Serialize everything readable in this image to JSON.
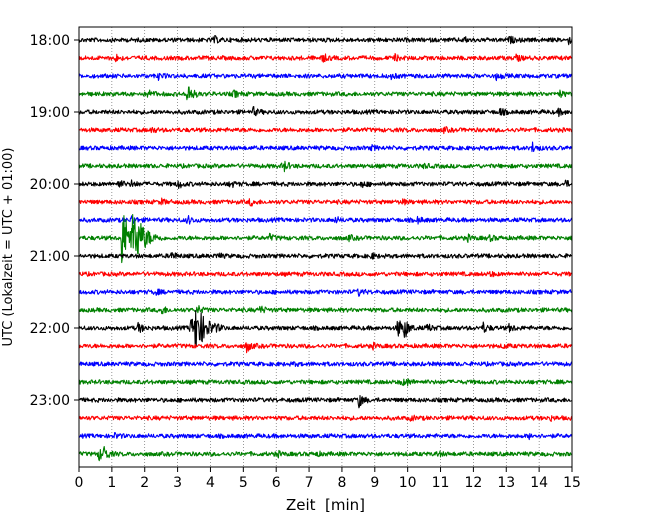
{
  "chart_data": {
    "type": "line",
    "title": "",
    "xlabel": "Zeit  [min]",
    "ylabel": "UTC (Lokalzeit = UTC + 01:00)",
    "xlim": [
      0,
      15
    ],
    "x_ticks": [
      "0",
      "1",
      "2",
      "3",
      "4",
      "5",
      "6",
      "7",
      "8",
      "9",
      "10",
      "11",
      "12",
      "13",
      "14",
      "15"
    ],
    "y_tick_labels": [
      "18:00",
      "19:00",
      "20:00",
      "21:00",
      "22:00",
      "23:00"
    ],
    "trace_interval_minutes": 15,
    "trace_count": 24,
    "start_time": "18:00",
    "color_cycle": [
      "#000000",
      "#ff0000",
      "#0000ff",
      "#008000"
    ],
    "grid": "vertical dotted lines at each minute",
    "traces": [
      {
        "start": "18:00",
        "color": "#000000",
        "events": [
          {
            "t": 4.1,
            "amp": 0.35
          },
          {
            "t": 11.7,
            "amp": 0.25
          },
          {
            "t": 13.1,
            "amp": 0.3
          },
          {
            "t": 14.9,
            "amp": 0.3
          }
        ]
      },
      {
        "start": "18:15",
        "color": "#ff0000",
        "events": [
          {
            "t": 1.1,
            "amp": 0.35
          },
          {
            "t": 7.4,
            "amp": 0.45
          },
          {
            "t": 9.6,
            "amp": 0.3
          },
          {
            "t": 13.3,
            "amp": 0.3
          }
        ]
      },
      {
        "start": "18:30",
        "color": "#0000ff",
        "events": [
          {
            "t": 2.4,
            "amp": 0.3
          },
          {
            "t": 9.5,
            "amp": 0.25
          },
          {
            "t": 12.7,
            "amp": 0.3
          }
        ]
      },
      {
        "start": "18:45",
        "color": "#008000",
        "events": [
          {
            "t": 2.1,
            "amp": 0.4
          },
          {
            "t": 3.3,
            "amp": 1.4
          },
          {
            "t": 4.7,
            "amp": 0.35
          },
          {
            "t": 14.6,
            "amp": 0.35
          }
        ]
      },
      {
        "start": "19:00",
        "color": "#000000",
        "events": [
          {
            "t": 5.3,
            "amp": 0.4
          },
          {
            "t": 12.8,
            "amp": 0.35
          },
          {
            "t": 14.6,
            "amp": 0.3
          }
        ]
      },
      {
        "start": "19:15",
        "color": "#ff0000",
        "events": [
          {
            "t": 2.2,
            "amp": 0.25
          },
          {
            "t": 11.1,
            "amp": 0.2
          }
        ]
      },
      {
        "start": "19:30",
        "color": "#0000ff",
        "events": [
          {
            "t": 8.9,
            "amp": 0.2
          },
          {
            "t": 13.8,
            "amp": 0.5
          }
        ]
      },
      {
        "start": "19:45",
        "color": "#008000",
        "events": [
          {
            "t": 6.2,
            "amp": 0.7
          },
          {
            "t": 10.5,
            "amp": 0.2
          }
        ]
      },
      {
        "start": "20:00",
        "color": "#000000",
        "events": [
          {
            "t": 1.2,
            "amp": 0.4
          },
          {
            "t": 1.6,
            "amp": 0.3
          },
          {
            "t": 3.0,
            "amp": 0.45
          },
          {
            "t": 4.6,
            "amp": 0.35
          },
          {
            "t": 8.6,
            "amp": 0.3
          },
          {
            "t": 14.8,
            "amp": 0.3
          }
        ]
      },
      {
        "start": "20:15",
        "color": "#ff0000",
        "events": [
          {
            "t": 2.5,
            "amp": 0.25
          },
          {
            "t": 5.2,
            "amp": 0.35
          },
          {
            "t": 9.8,
            "amp": 0.25
          }
        ]
      },
      {
        "start": "20:30",
        "color": "#0000ff",
        "events": [
          {
            "t": 1.6,
            "amp": 0.45
          },
          {
            "t": 3.3,
            "amp": 0.45
          },
          {
            "t": 7.8,
            "amp": 0.25
          },
          {
            "t": 10.3,
            "amp": 0.3
          }
        ]
      },
      {
        "start": "20:45",
        "color": "#008000",
        "events": [
          {
            "t": 1.3,
            "amp": 3.0
          },
          {
            "t": 1.65,
            "amp": 2.3
          },
          {
            "t": 5.8,
            "amp": 0.3
          },
          {
            "t": 8.2,
            "amp": 0.25
          },
          {
            "t": 11.8,
            "amp": 0.3
          },
          {
            "t": 12.5,
            "amp": 0.25
          }
        ]
      },
      {
        "start": "21:00",
        "color": "#000000",
        "events": [
          {
            "t": 2.8,
            "amp": 0.45
          },
          {
            "t": 4.2,
            "amp": 0.25
          },
          {
            "t": 8.9,
            "amp": 0.25
          }
        ]
      },
      {
        "start": "21:15",
        "color": "#ff0000",
        "events": [
          {
            "t": 12.5,
            "amp": 0.2
          }
        ]
      },
      {
        "start": "21:30",
        "color": "#0000ff",
        "events": [
          {
            "t": 2.3,
            "amp": 0.3
          },
          {
            "t": 8.5,
            "amp": 0.35
          }
        ]
      },
      {
        "start": "21:45",
        "color": "#008000",
        "events": [
          {
            "t": 2.5,
            "amp": 0.45
          },
          {
            "t": 3.6,
            "amp": 0.45
          },
          {
            "t": 5.5,
            "amp": 0.4
          }
        ]
      },
      {
        "start": "22:00",
        "color": "#000000",
        "events": [
          {
            "t": 1.8,
            "amp": 0.5
          },
          {
            "t": 3.4,
            "amp": 1.2
          },
          {
            "t": 3.55,
            "amp": 2.4
          },
          {
            "t": 9.7,
            "amp": 1.1
          },
          {
            "t": 9.9,
            "amp": 1.0
          },
          {
            "t": 10.6,
            "amp": 0.4
          },
          {
            "t": 12.3,
            "amp": 0.5
          },
          {
            "t": 13.1,
            "amp": 0.4
          }
        ]
      },
      {
        "start": "22:15",
        "color": "#ff0000",
        "events": [
          {
            "t": 5.1,
            "amp": 0.6
          },
          {
            "t": 8.9,
            "amp": 0.3
          },
          {
            "t": 12.9,
            "amp": 0.2
          }
        ]
      },
      {
        "start": "22:30",
        "color": "#0000ff",
        "events": [
          {
            "t": 6.5,
            "amp": 0.15
          }
        ]
      },
      {
        "start": "22:45",
        "color": "#008000",
        "events": [
          {
            "t": 9.8,
            "amp": 0.35
          },
          {
            "t": 10.0,
            "amp": 0.25
          }
        ]
      },
      {
        "start": "23:00",
        "color": "#000000",
        "events": [
          {
            "t": 8.5,
            "amp": 0.8
          }
        ]
      },
      {
        "start": "23:15",
        "color": "#ff0000",
        "events": [
          {
            "t": 10.1,
            "amp": 0.2
          },
          {
            "t": 14.3,
            "amp": 0.25
          }
        ]
      },
      {
        "start": "23:30",
        "color": "#0000ff",
        "events": [
          {
            "t": 1.1,
            "amp": 0.25
          },
          {
            "t": 13.7,
            "amp": 0.2
          }
        ]
      },
      {
        "start": "23:45",
        "color": "#008000",
        "events": [
          {
            "t": 0.6,
            "amp": 0.6
          },
          {
            "t": 0.75,
            "amp": 0.7
          },
          {
            "t": 6.0,
            "amp": 0.3
          },
          {
            "t": 7.2,
            "amp": 0.2
          },
          {
            "t": 10.9,
            "amp": 0.25
          }
        ]
      }
    ]
  }
}
